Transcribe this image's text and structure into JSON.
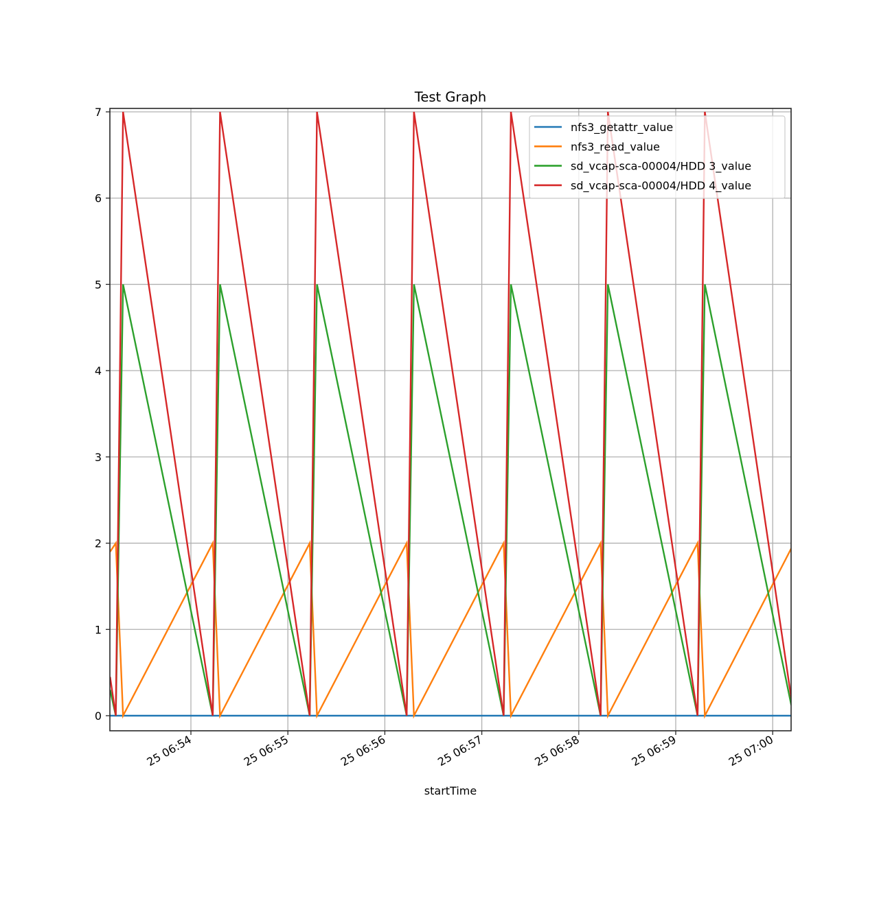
{
  "chart_data": {
    "type": "line",
    "title": "Test Graph",
    "xlabel": "startTime",
    "ylabel": "",
    "ylim": [
      -0.17,
      7.04
    ],
    "yticks": [
      0,
      1,
      2,
      3,
      4,
      5,
      6,
      7
    ],
    "xlim": [
      "06:53:10",
      "07:00:11.5"
    ],
    "xticks": [
      {
        "label": "25 06:54",
        "t": "06:54:00"
      },
      {
        "label": "25 06:55",
        "t": "06:55:00"
      },
      {
        "label": "25 06:56",
        "t": "06:56:00"
      },
      {
        "label": "25 06:57",
        "t": "06:57:00"
      },
      {
        "label": "25 06:58",
        "t": "06:58:00"
      },
      {
        "label": "25 06:59",
        "t": "06:59:00"
      },
      {
        "label": "25 07:00",
        "t": "07:00:00"
      }
    ],
    "grid": true,
    "legend_position": "upper right",
    "x_seconds_note": "x values are seconds after 06:53:00",
    "x": [
      10,
      13.5,
      18,
      73.5,
      78,
      133.5,
      138,
      193.5,
      198,
      253.5,
      258,
      313.5,
      318,
      373.5,
      378,
      431.5
    ],
    "series": [
      {
        "name": "nfs3_getattr_value",
        "color": "#1f77b4",
        "values": [
          0,
          0,
          0,
          0,
          0,
          0,
          0,
          0,
          0,
          0,
          0,
          0,
          0,
          0,
          0,
          0
        ]
      },
      {
        "name": "nfs3_read_value",
        "color": "#ff7f0e",
        "values": [
          1.9,
          2,
          0,
          2,
          0,
          2,
          0,
          2,
          0,
          2,
          0,
          2,
          0,
          2,
          0,
          1.94
        ]
      },
      {
        "name": "sd_vcap-sca-00004/HDD 3_value",
        "color": "#2ca02c",
        "values": [
          0.3,
          0,
          5,
          0,
          5,
          0,
          5,
          0,
          5,
          0,
          5,
          0,
          5,
          0,
          5,
          0.12
        ]
      },
      {
        "name": "sd_vcap-sca-00004/HDD 4_value",
        "color": "#d62728",
        "values": [
          0.45,
          0,
          7,
          0,
          7,
          0,
          7,
          0,
          7,
          0,
          7,
          0,
          7,
          0,
          7,
          0.2
        ]
      }
    ]
  }
}
